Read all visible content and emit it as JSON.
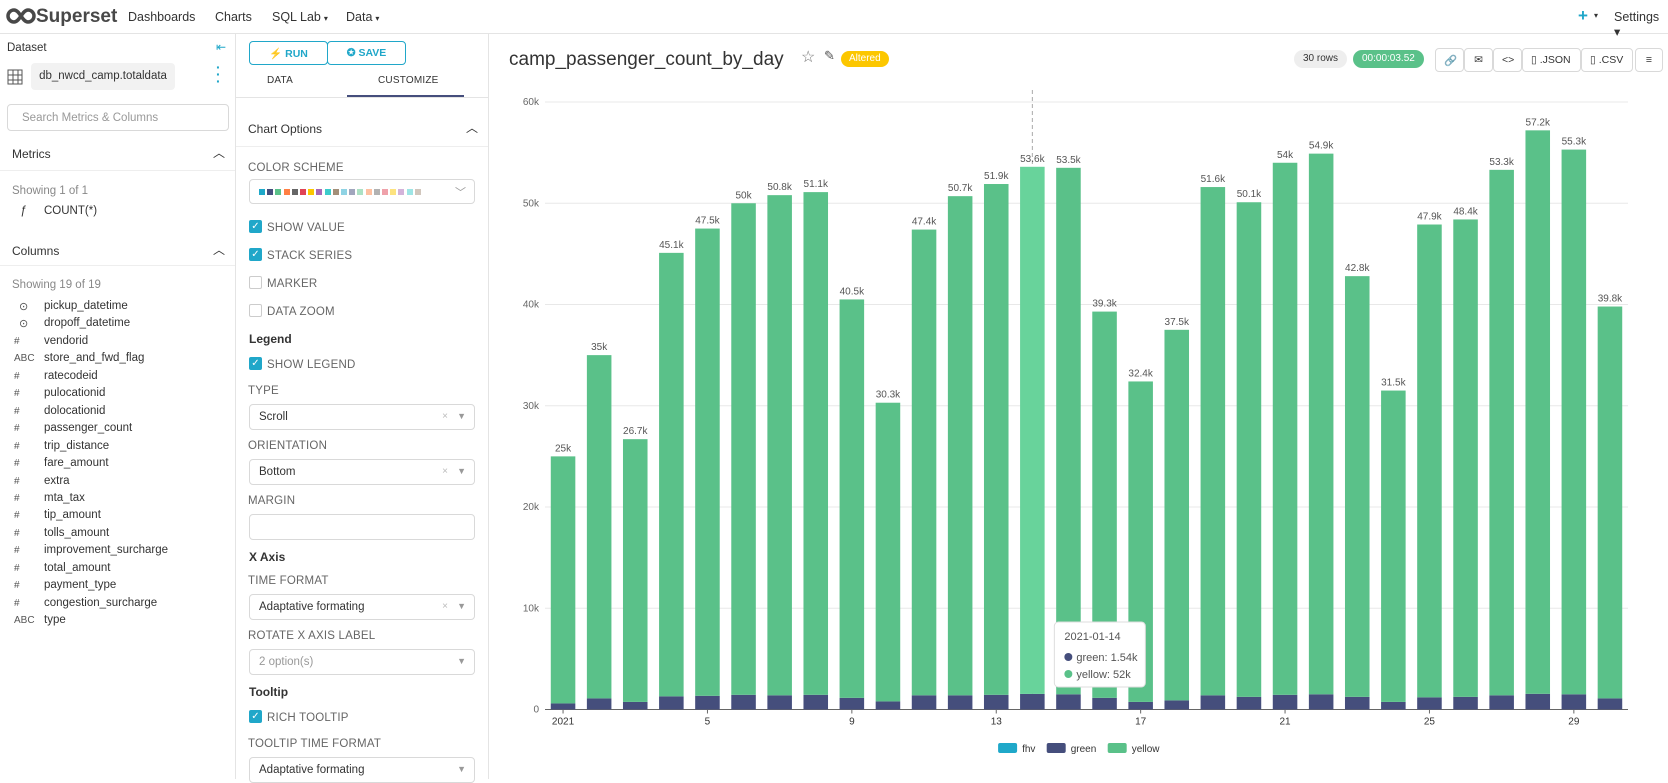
{
  "nav": {
    "brand": "Superset",
    "items": [
      "Dashboards",
      "Charts",
      "SQL Lab",
      "Data"
    ],
    "dropdowns": [
      false,
      false,
      true,
      true
    ],
    "settings": "Settings"
  },
  "dataset": {
    "heading": "Dataset",
    "name": "db_nwcd_camp.totaldata",
    "search_placeholder": "Search Metrics & Columns",
    "metrics_heading": "Metrics",
    "metrics_count": "Showing 1 of 1",
    "metrics": [
      "COUNT(*)"
    ],
    "columns_heading": "Columns",
    "columns_count": "Showing 19 of 19",
    "columns": [
      {
        "name": "pickup_datetime"
      },
      {
        "name": "dropoff_datetime"
      },
      {
        "icon": "#",
        "name": "vendorid"
      },
      {
        "icon": "ABC",
        "name": "store_and_fwd_flag"
      },
      {
        "icon": "#",
        "name": "ratecodeid"
      },
      {
        "icon": "#",
        "name": "pulocationid"
      },
      {
        "icon": "#",
        "name": "dolocationid"
      },
      {
        "icon": "#",
        "name": "passenger_count"
      },
      {
        "icon": "#",
        "name": "trip_distance"
      },
      {
        "icon": "#",
        "name": "fare_amount"
      },
      {
        "icon": "#",
        "name": "extra"
      },
      {
        "icon": "#",
        "name": "mta_tax"
      },
      {
        "icon": "#",
        "name": "tip_amount"
      },
      {
        "icon": "#",
        "name": "tolls_amount"
      },
      {
        "icon": "#",
        "name": "improvement_surcharge"
      },
      {
        "icon": "#",
        "name": "total_amount"
      },
      {
        "icon": "#",
        "name": "payment_type"
      },
      {
        "icon": "#",
        "name": "congestion_surcharge"
      },
      {
        "icon": "ABC",
        "name": "type"
      }
    ]
  },
  "controls": {
    "run": "RUN",
    "save": "SAVE",
    "tabs": [
      "DATA",
      "CUSTOMIZE"
    ],
    "section": "Chart Options",
    "items": [
      {
        "kind": "colors",
        "label": "COLOR SCHEME",
        "colors": [
          "#1FA8C9",
          "#454E7C",
          "#5AC189",
          "#FF7F44",
          "#666666",
          "#E04355",
          "#FCC700",
          "#A868B7",
          "#3CCCCB",
          "#A38F79",
          "#8FD3E4",
          "#A1A6BD",
          "#ACE1C4",
          "#FEC0A1",
          "#B2B2B2",
          "#EFA1AA",
          "#FDE380",
          "#D3B3DA",
          "#9EE5E5",
          "#D1C6BC"
        ]
      },
      {
        "kind": "checkbox",
        "label": "SHOW VALUE",
        "checked": true
      },
      {
        "kind": "checkbox",
        "label": "STACK SERIES",
        "checked": true
      },
      {
        "kind": "checkbox",
        "label": "MARKER",
        "checked": false
      },
      {
        "kind": "checkbox",
        "label": "DATA ZOOM",
        "checked": false
      },
      {
        "kind": "heading",
        "label": "Legend"
      },
      {
        "kind": "checkbox",
        "label": "SHOW LEGEND",
        "checked": true
      },
      {
        "kind": "select",
        "label": "TYPE",
        "value": "Scroll",
        "clearable": true
      },
      {
        "kind": "select",
        "label": "ORIENTATION",
        "value": "Bottom",
        "clearable": true
      },
      {
        "kind": "input",
        "label": "MARGIN"
      },
      {
        "kind": "heading",
        "label": "X Axis"
      },
      {
        "kind": "select",
        "label": "TIME FORMAT",
        "value": "Adaptative formating",
        "clearable": true
      },
      {
        "kind": "select",
        "label": "ROTATE X AXIS LABEL",
        "value": "2 option(s)",
        "clearable": false,
        "muted": true
      },
      {
        "kind": "heading",
        "label": "Tooltip"
      },
      {
        "kind": "checkbox",
        "label": "RICH TOOLTIP",
        "checked": true
      },
      {
        "kind": "select",
        "label": "TOOLTIP TIME FORMAT",
        "value": "Adaptative formating",
        "clearable": false
      }
    ]
  },
  "header": {
    "title": "camp_passenger_count_by_day",
    "badge": "Altered",
    "rows": "30 rows",
    "timer": "00:00:03.52",
    "json": ".JSON",
    "csv": ".CSV"
  },
  "chart_data": {
    "type": "bar",
    "stacked": true,
    "categories": [
      "2021-01-01",
      "2021-01-02",
      "2021-01-03",
      "2021-01-04",
      "2021-01-05",
      "2021-01-06",
      "2021-01-07",
      "2021-01-08",
      "2021-01-09",
      "2021-01-10",
      "2021-01-11",
      "2021-01-12",
      "2021-01-13",
      "2021-01-14",
      "2021-01-15",
      "2021-01-16",
      "2021-01-17",
      "2021-01-18",
      "2021-01-19",
      "2021-01-20",
      "2021-01-21",
      "2021-01-22",
      "2021-01-23",
      "2021-01-24",
      "2021-01-25",
      "2021-01-26",
      "2021-01-27",
      "2021-01-28",
      "2021-01-29",
      "2021-01-30"
    ],
    "series": [
      {
        "name": "fhv",
        "color": "#1fa8c9",
        "values": [
          0,
          0,
          0,
          0,
          0,
          0,
          0,
          0,
          0,
          0,
          0,
          0,
          0,
          0,
          0,
          0,
          0,
          0,
          0,
          0,
          0,
          0,
          0,
          0,
          0,
          0,
          0,
          0,
          0,
          0
        ]
      },
      {
        "name": "green",
        "color": "#454e7c",
        "values": [
          600,
          1100,
          750,
          1300,
          1350,
          1450,
          1400,
          1450,
          1150,
          800,
          1400,
          1400,
          1450,
          1540,
          1500,
          1150,
          750,
          900,
          1400,
          1250,
          1450,
          1500,
          1250,
          750,
          1200,
          1250,
          1400,
          1550,
          1500,
          1100
        ]
      },
      {
        "name": "yellow",
        "color": "#5ac189",
        "values": [
          24400,
          33900,
          25950,
          43800,
          46150,
          48550,
          49400,
          49650,
          39350,
          29500,
          46000,
          49300,
          50450,
          52060,
          52000,
          38150,
          31650,
          36600,
          50200,
          48850,
          52550,
          53400,
          41550,
          30750,
          46700,
          47150,
          51900,
          55650,
          53800,
          38700
        ]
      }
    ],
    "total_labels": [
      "25k",
      "35k",
      "26.7k",
      "45.1k",
      "47.5k",
      "50k",
      "50.8k",
      "51.1k",
      "40.5k",
      "30.3k",
      "47.4k",
      "50.7k",
      "51.9k",
      "53.6k",
      "53.5k",
      "39.3k",
      "32.4k",
      "37.5k",
      "51.6k",
      "50.1k",
      "54k",
      "54.9k",
      "42.8k",
      "31.5k",
      "47.9k",
      "48.4k",
      "53.3k",
      "57.2k",
      "55.3k",
      "39.8k"
    ],
    "ylim": [
      0,
      60000
    ],
    "yticks": [
      0,
      {
        "value": 10000,
        "label": "10k"
      },
      {
        "value": 20000,
        "label": "20k"
      },
      {
        "value": 30000,
        "label": "30k"
      },
      {
        "value": 40000,
        "label": "40k"
      },
      {
        "value": 50000,
        "label": "50k"
      },
      {
        "value": 60000,
        "label": "60k"
      }
    ],
    "xticks": [
      {
        "value": "2021-01-01",
        "label": "2021"
      },
      {
        "value": "2021-01-05",
        "label": "5"
      },
      {
        "value": "2021-01-09",
        "label": "9"
      },
      {
        "value": "2021-01-13",
        "label": "13"
      },
      {
        "value": "2021-01-17",
        "label": "17"
      },
      {
        "value": "2021-01-21",
        "label": "21"
      },
      {
        "value": "2021-01-25",
        "label": "25"
      },
      {
        "value": "2021-01-29",
        "label": "29"
      }
    ],
    "grid": true,
    "legend": "bottom",
    "highlight_color": "#68d39b",
    "tooltip": {
      "title": "2021-01-14",
      "items": [
        {
          "label": "green: 1.54k",
          "color": "#454e7c"
        },
        {
          "label": "yellow: 52k",
          "color": "#5ac189"
        }
      ]
    }
  }
}
